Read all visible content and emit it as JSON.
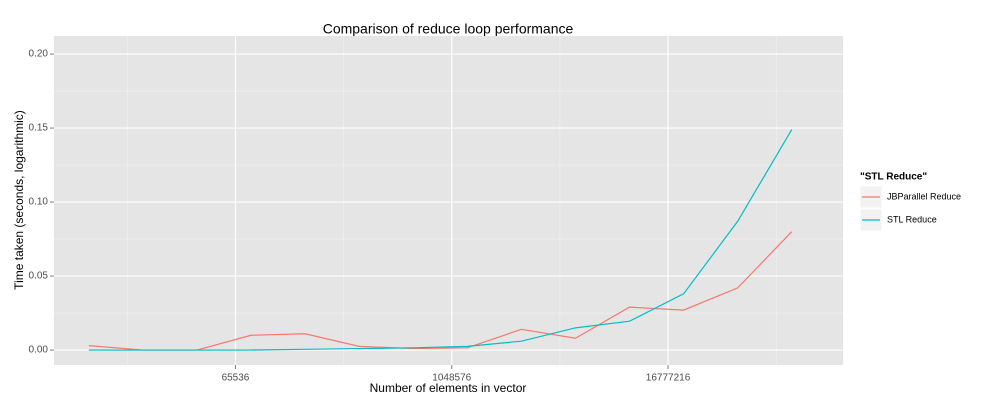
{
  "chart_data": {
    "type": "line",
    "title": "Comparison of reduce loop performance",
    "x_label": "Number  of elements in vector",
    "y_label": "Time taken (seconds, logarithmic)",
    "legend_title": "\"STL Reduce\"",
    "legend_position": "right",
    "x_scale": "log",
    "grid": true,
    "x": [
      10000,
      20000,
      40000,
      80000,
      160000,
      320000,
      640000,
      1280000,
      2560000,
      5120000,
      10240000,
      20480000,
      40960000,
      81920000
    ],
    "series": [
      {
        "name": "JBParallel Reduce",
        "color": "#f8766d",
        "values": [
          0.003,
          0,
          0,
          0.01,
          0.011,
          0.0025,
          0.001,
          0.0015,
          0.014,
          0.008,
          0.029,
          0.027,
          0.042,
          0.08
        ]
      },
      {
        "name": "STL Reduce",
        "color": "#00bfc4",
        "values": [
          0,
          0,
          0,
          0,
          0.0005,
          0.001,
          0.0015,
          0.0025,
          0.006,
          0.015,
          0.0195,
          0.038,
          0.087,
          0.149
        ]
      }
    ],
    "xlim": [
      6400,
      158000000
    ],
    "xticks": [
      65536,
      1048576,
      16777216
    ],
    "xminorticks": [
      16384,
      262144,
      4194304,
      67108864
    ],
    "ylim": [
      -0.0101,
      0.2122
    ],
    "yticks": [
      {
        "value": 0,
        "label": "0.00"
      },
      {
        "value": 0.05,
        "label": "0.05"
      },
      {
        "value": 0.1,
        "label": "0.10"
      },
      {
        "value": 0.15,
        "label": "0.15"
      },
      {
        "value": 0.2,
        "label": "0.20"
      }
    ],
    "yminorticks": [
      0.025,
      0.075,
      0.125,
      0.175
    ]
  }
}
